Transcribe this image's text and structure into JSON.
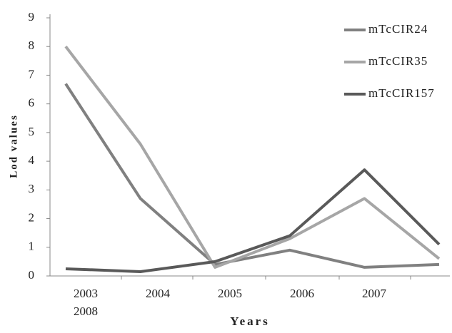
{
  "chart_data": {
    "type": "line",
    "x_label": "Years",
    "y_label": "Lod values",
    "categories": [
      "2003",
      "2004",
      "2005",
      "2006",
      "2007",
      "2008"
    ],
    "series": [
      {
        "name": "mTcCIR24",
        "color": "#808080",
        "values": [
          6.7,
          2.7,
          0.4,
          0.9,
          0.3,
          0.4
        ]
      },
      {
        "name": "mTcCIR35",
        "color": "#a6a6a6",
        "values": [
          8.0,
          4.6,
          0.3,
          1.3,
          2.7,
          0.6
        ]
      },
      {
        "name": "mTcCIR157",
        "color": "#595959",
        "values": [
          0.25,
          0.15,
          0.5,
          1.4,
          3.7,
          1.1
        ]
      }
    ],
    "ylim": [
      0,
      9
    ],
    "yticks": [
      0,
      1,
      2,
      3,
      4,
      5,
      6,
      7,
      8,
      9
    ],
    "grid": false,
    "legend": "top-right"
  }
}
